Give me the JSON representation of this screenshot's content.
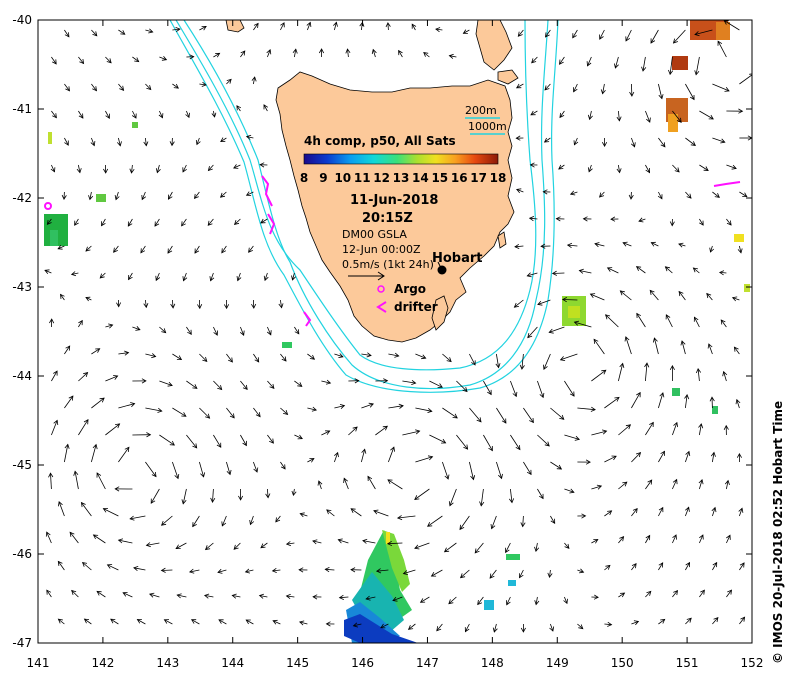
{
  "map": {
    "lon_range": [
      141,
      152
    ],
    "lat_range": [
      -47,
      -40
    ],
    "lon_ticks": [
      "141",
      "142",
      "143",
      "144",
      "145",
      "146",
      "147",
      "148",
      "149",
      "150",
      "151",
      "152"
    ],
    "lat_ticks": [
      "-40",
      "-41",
      "-42",
      "-43",
      "-44",
      "-45",
      "-46",
      "-47"
    ],
    "land_color": "#fcc99a",
    "isobath_color": "#22d3e0"
  },
  "legend": {
    "isobath_200": "200m",
    "isobath_1000": "1000m",
    "composite_title": "4h comp, p50, All Sats",
    "colorbar_labels": [
      "8",
      "9",
      "10",
      "11",
      "12",
      "13",
      "14",
      "15",
      "16",
      "17",
      "18"
    ],
    "date": "11-Jun-2018",
    "time": "20:15Z",
    "product": "DM00 GSLA",
    "product_time": "12-Jun 00:00Z",
    "scale_arrow": "0.5m/s (1kt 24h)",
    "argo_label": "Argo",
    "drifter_label": "drifter",
    "city_label": "Hobart"
  },
  "credit": "© IMOS 20-Jul-2018 02:52 Hobart Time"
}
